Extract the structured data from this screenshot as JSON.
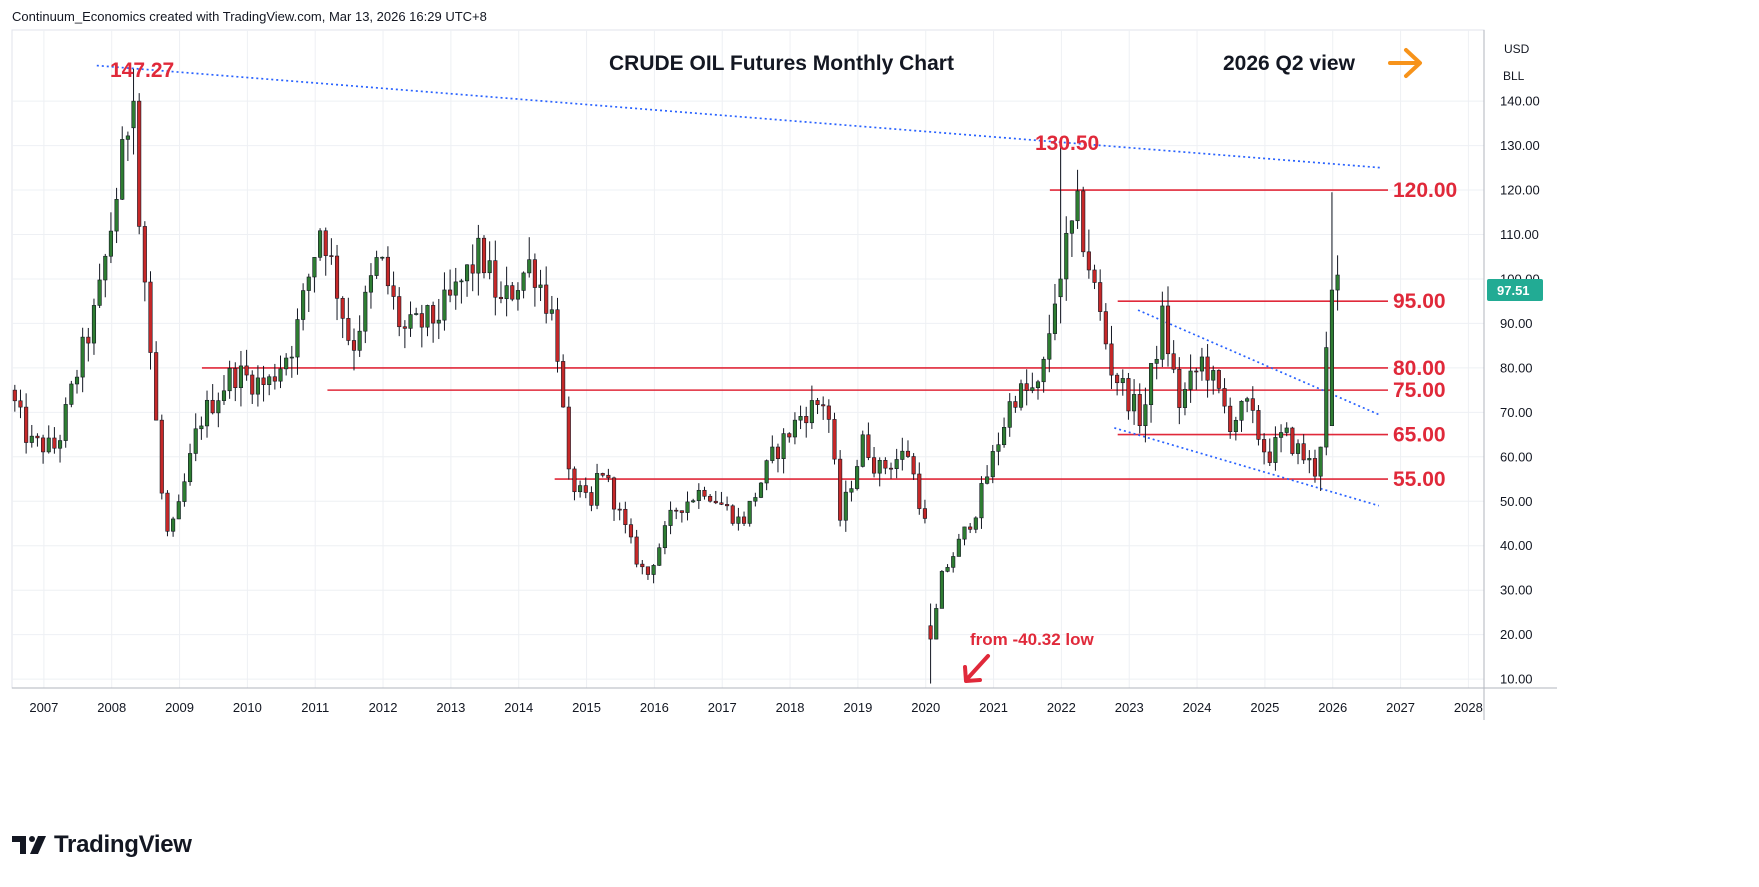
{
  "header": {
    "text": "Continuum_Economics created with TradingView.com, Mar 13, 2026 16:29 UTC+8"
  },
  "footer": {
    "brand": "TradingView"
  },
  "price_scale": {
    "currency": "USD",
    "unit": "BLL",
    "last_price": "97.51",
    "last_price_color": "#22ab94"
  },
  "colors": {
    "up": "#2e7d32",
    "down": "#c62828",
    "level": "#e0293a",
    "trend": "#2962ff",
    "arrow_orange": "#f7931a"
  },
  "annotations": {
    "title": "CRUDE OIL Futures Monthly Chart",
    "view": "2026 Q2 view",
    "high_2008": "147.27",
    "high_2022": "130.50",
    "low_note": "from -40.32 low"
  },
  "chart_data": {
    "type": "candlestick",
    "title": "CRUDE OIL Futures Monthly Chart",
    "xlabel": "",
    "ylabel": "",
    "ylim": [
      8,
      156
    ],
    "xlim": [
      2006.7,
      2028.4
    ],
    "grid": true,
    "x_ticks": [
      "2007",
      "2008",
      "2009",
      "2010",
      "2011",
      "2012",
      "2013",
      "2014",
      "2015",
      "2016",
      "2017",
      "2018",
      "2019",
      "2020",
      "2021",
      "2022",
      "2023",
      "2024",
      "2025",
      "2026",
      "2027",
      "2028"
    ],
    "y_ticks": [
      "10.00",
      "20.00",
      "30.00",
      "40.00",
      "50.00",
      "60.00",
      "70.00",
      "80.00",
      "90.00",
      "100.00",
      "110.00",
      "120.00",
      "130.00",
      "140.00"
    ],
    "levels": [
      {
        "label": "120.00",
        "value": 120,
        "x_start": 2022.0
      },
      {
        "label": "95.00",
        "value": 95,
        "x_start": 2023.0
      },
      {
        "label": "80.00",
        "value": 80,
        "x_start": 2009.5
      },
      {
        "label": "75.00",
        "value": 75,
        "x_start": 2011.35
      },
      {
        "label": "65.00",
        "value": 65,
        "x_start": 2023.0
      },
      {
        "label": "55.00",
        "value": 55,
        "x_start": 2014.7
      }
    ],
    "trendlines": [
      {
        "name": "long-term resistance",
        "points": [
          [
            2007.95,
            148
          ],
          [
            2026.9,
            125
          ]
        ]
      },
      {
        "name": "channel upper",
        "points": [
          [
            2023.3,
            93
          ],
          [
            2026.85,
            69.5
          ]
        ]
      },
      {
        "name": "channel lower",
        "points": [
          [
            2022.95,
            66.5
          ],
          [
            2026.85,
            49
          ]
        ]
      }
    ],
    "anchors": [
      [
        2006.7,
        75
      ],
      [
        2007.0,
        63
      ],
      [
        2007.4,
        62
      ],
      [
        2007.75,
        82
      ],
      [
        2008.0,
        94
      ],
      [
        2008.35,
        125
      ],
      [
        2008.5,
        140
      ],
      [
        2008.75,
        90
      ],
      [
        2009.0,
        42
      ],
      [
        2009.15,
        45
      ],
      [
        2009.5,
        68
      ],
      [
        2010.0,
        79
      ],
      [
        2010.5,
        76
      ],
      [
        2010.9,
        86
      ],
      [
        2011.3,
        113
      ],
      [
        2011.75,
        84
      ],
      [
        2012.15,
        105
      ],
      [
        2012.5,
        88
      ],
      [
        2012.95,
        91
      ],
      [
        2013.2,
        95
      ],
      [
        2013.65,
        106
      ],
      [
        2013.95,
        94
      ],
      [
        2014.4,
        104
      ],
      [
        2014.75,
        90
      ],
      [
        2014.95,
        55
      ],
      [
        2015.3,
        48
      ],
      [
        2015.4,
        59
      ],
      [
        2015.95,
        37
      ],
      [
        2016.1,
        33
      ],
      [
        2016.5,
        48
      ],
      [
        2016.95,
        53
      ],
      [
        2017.5,
        45
      ],
      [
        2017.95,
        60
      ],
      [
        2018.4,
        70
      ],
      [
        2018.75,
        73
      ],
      [
        2018.95,
        46
      ],
      [
        2019.3,
        64
      ],
      [
        2019.5,
        57
      ],
      [
        2019.95,
        61
      ],
      [
        2020.2,
        45
      ],
      [
        2020.3,
        19
      ],
      [
        2020.45,
        33
      ],
      [
        2020.95,
        48
      ],
      [
        2021.5,
        74
      ],
      [
        2021.9,
        75
      ],
      [
        2022.15,
        100
      ],
      [
        2022.45,
        115
      ],
      [
        2022.95,
        80
      ],
      [
        2023.4,
        68
      ],
      [
        2023.7,
        91
      ],
      [
        2023.95,
        72
      ],
      [
        2024.3,
        82
      ],
      [
        2024.7,
        68
      ],
      [
        2024.95,
        71
      ],
      [
        2025.25,
        60
      ],
      [
        2025.5,
        65
      ],
      [
        2025.95,
        57
      ],
      [
        2026.05,
        65
      ],
      [
        2026.17,
        97.5
      ]
    ],
    "special_bars": [
      {
        "x": 2008.48,
        "o": 134,
        "c": 140,
        "h": 147.27,
        "l": 128
      },
      {
        "x": 2020.27,
        "o": 22,
        "c": 19,
        "h": 27,
        "l": -40.32
      },
      {
        "x": 2022.17,
        "o": 96,
        "c": 100,
        "h": 130.5,
        "l": 90
      },
      {
        "x": 2026.17,
        "o": 67,
        "c": 97.51,
        "h": 119.5,
        "l": 69
      }
    ]
  }
}
